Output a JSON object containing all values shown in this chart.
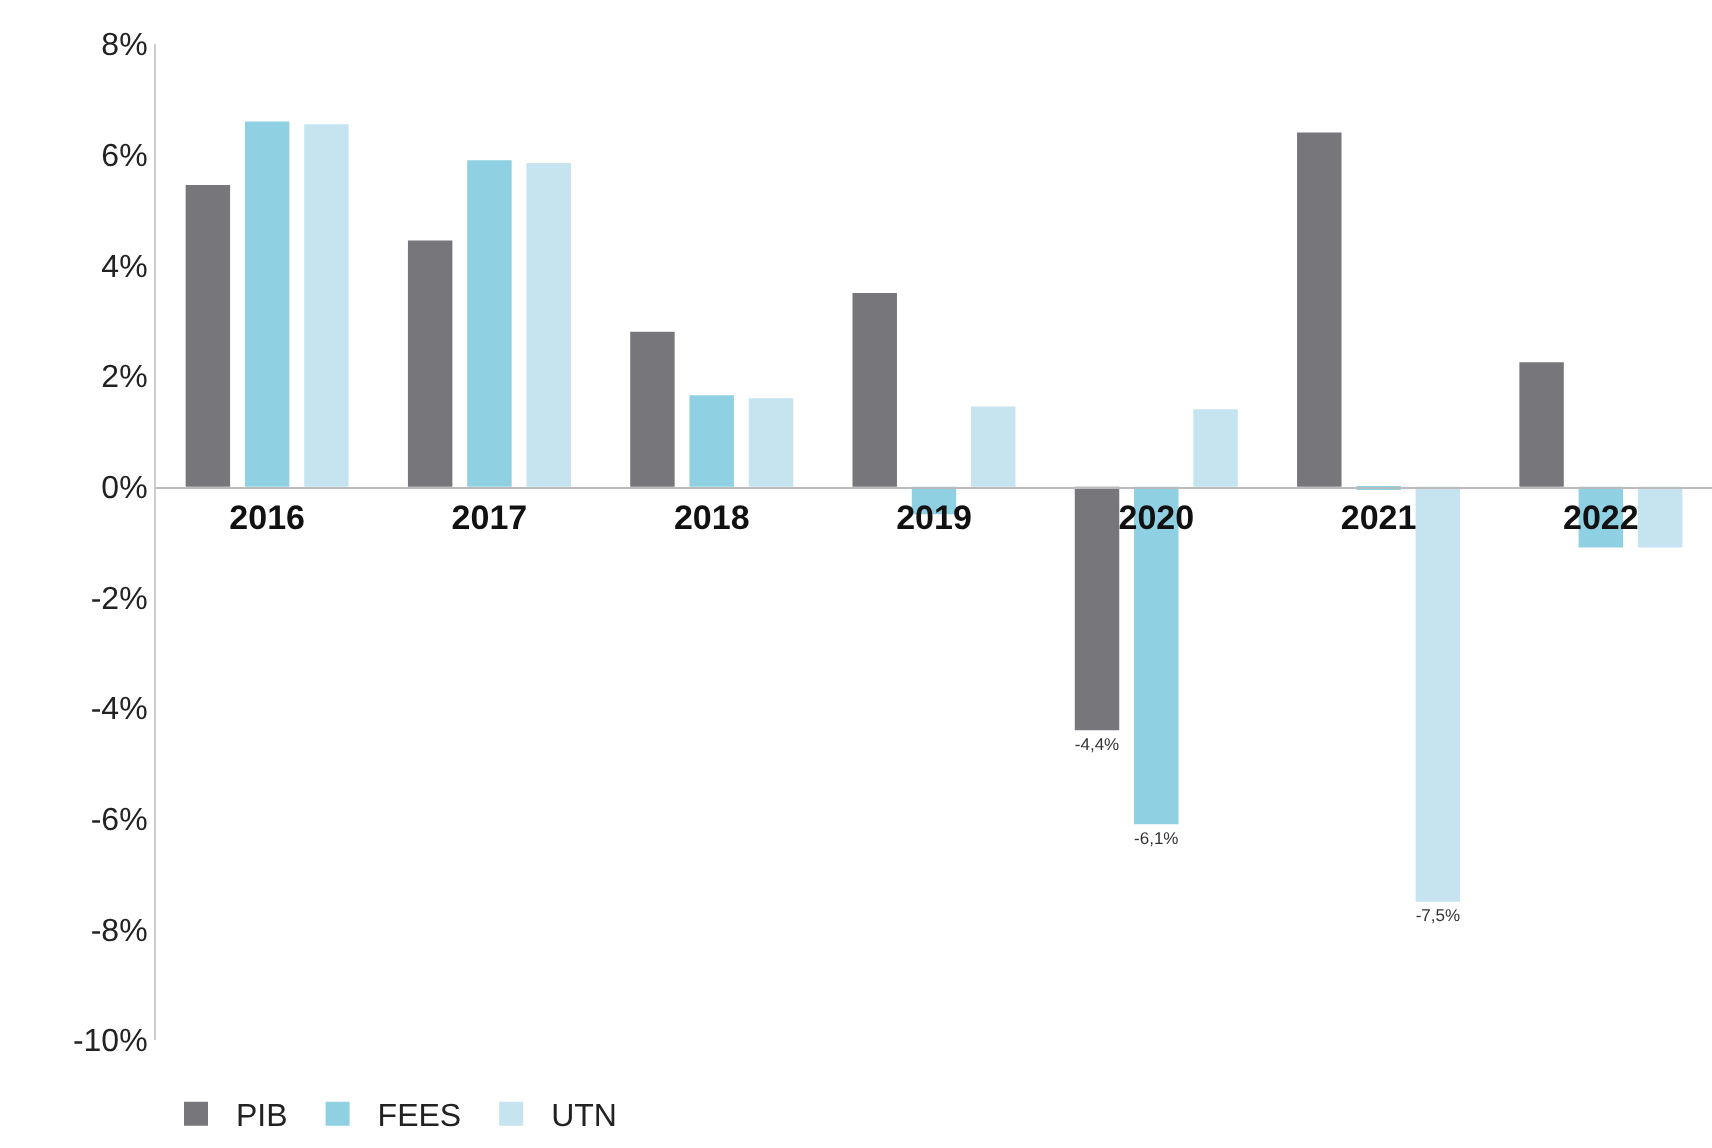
{
  "chart_data": {
    "type": "bar",
    "categories": [
      "2016",
      "2017",
      "2018",
      "2019",
      "2020",
      "2021",
      "2022"
    ],
    "series": [
      {
        "name": "PIB",
        "color": "#77777b",
        "values": [
          5.45,
          4.45,
          2.8,
          3.5,
          -4.4,
          6.4,
          2.25
        ],
        "value_labels": [
          null,
          null,
          null,
          null,
          "-4,4%",
          null,
          null
        ]
      },
      {
        "name": "FEES",
        "color": "#8fd0e3",
        "values": [
          6.6,
          5.9,
          1.65,
          -0.5,
          -6.1,
          -0.05,
          -1.1
        ],
        "value_labels": [
          null,
          null,
          null,
          null,
          "-6,1%",
          null,
          null
        ]
      },
      {
        "name": "UTN",
        "color": "#c5e4f0",
        "values": [
          6.55,
          5.85,
          1.6,
          1.45,
          1.4,
          -7.5,
          -1.1
        ],
        "value_labels": [
          null,
          null,
          null,
          null,
          null,
          "-7,5%",
          null
        ]
      }
    ],
    "ylim": [
      -10,
      8
    ],
    "yticks": [
      {
        "value": -10,
        "label": "-10%"
      },
      {
        "value": -8,
        "label": "-8%"
      },
      {
        "value": -6,
        "label": "-6%"
      },
      {
        "value": -4,
        "label": "-4%"
      },
      {
        "value": -2,
        "label": "-2%"
      },
      {
        "value": 0,
        "label": "0%"
      },
      {
        "value": 2,
        "label": "2%"
      },
      {
        "value": 4,
        "label": "4%"
      },
      {
        "value": 6,
        "label": "6%"
      },
      {
        "value": 8,
        "label": "8%"
      }
    ],
    "grid": false,
    "legend": "bottom left"
  }
}
